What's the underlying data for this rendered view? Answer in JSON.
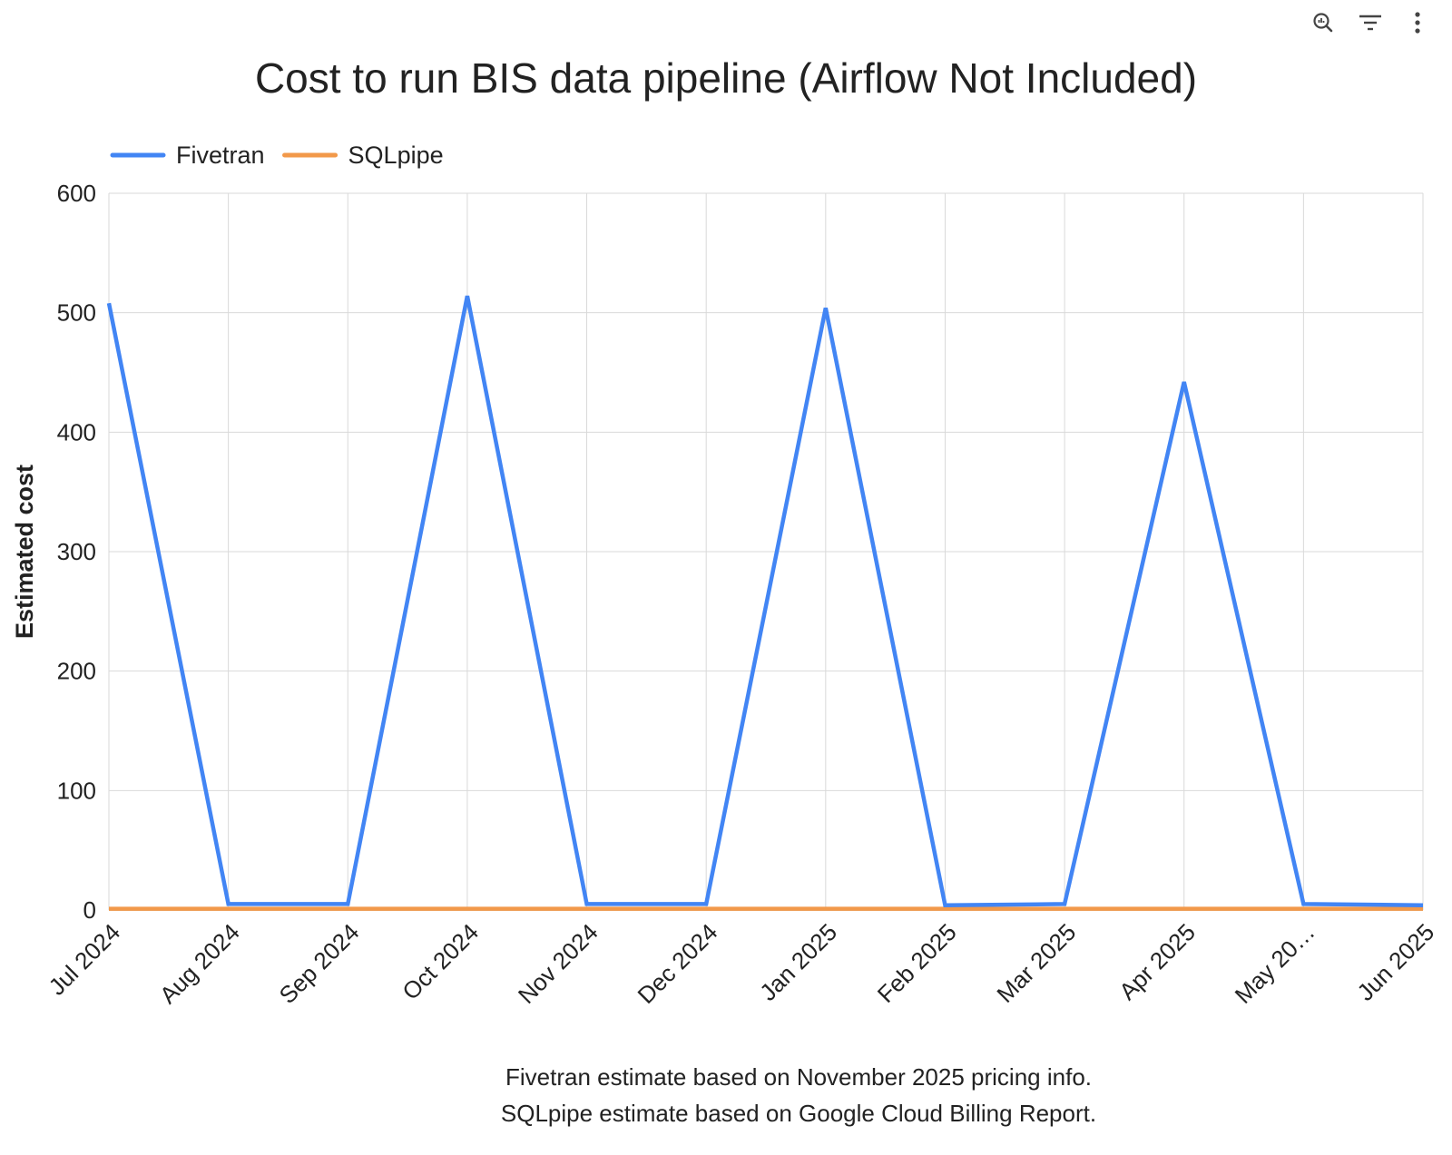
{
  "toolbar": {
    "icons": [
      "chart-explore-icon",
      "filter-icon",
      "more-vert-icon"
    ]
  },
  "chart_data": {
    "type": "line",
    "title": "Cost to run BIS data pipeline (Airflow Not Included)",
    "xlabel": "",
    "ylabel": "Estimated cost",
    "categories": [
      "Jul 2024",
      "Aug 2024",
      "Sep 2024",
      "Oct 2024",
      "Nov 2024",
      "Dec 2024",
      "Jan 2025",
      "Feb 2025",
      "Mar 2025",
      "Apr 2025",
      "May 20…",
      "Jun 2025"
    ],
    "series": [
      {
        "name": "Fivetran",
        "color": "#4285F4",
        "values": [
          508,
          5,
          5,
          514,
          5,
          5,
          504,
          4,
          5,
          442,
          5,
          4
        ]
      },
      {
        "name": "SQLpipe",
        "color": "#F2994A",
        "values": [
          1,
          1,
          1,
          1,
          1,
          1,
          1,
          1,
          1,
          1,
          1,
          1
        ]
      }
    ],
    "ylim": [
      0,
      600
    ],
    "yticks": [
      0,
      100,
      200,
      300,
      400,
      500,
      600
    ],
    "grid": true,
    "legend_position": "top-left",
    "notes": [
      "Fivetran estimate based on November 2025 pricing info.",
      "SQLpipe estimate based on Google Cloud Billing Report."
    ]
  }
}
